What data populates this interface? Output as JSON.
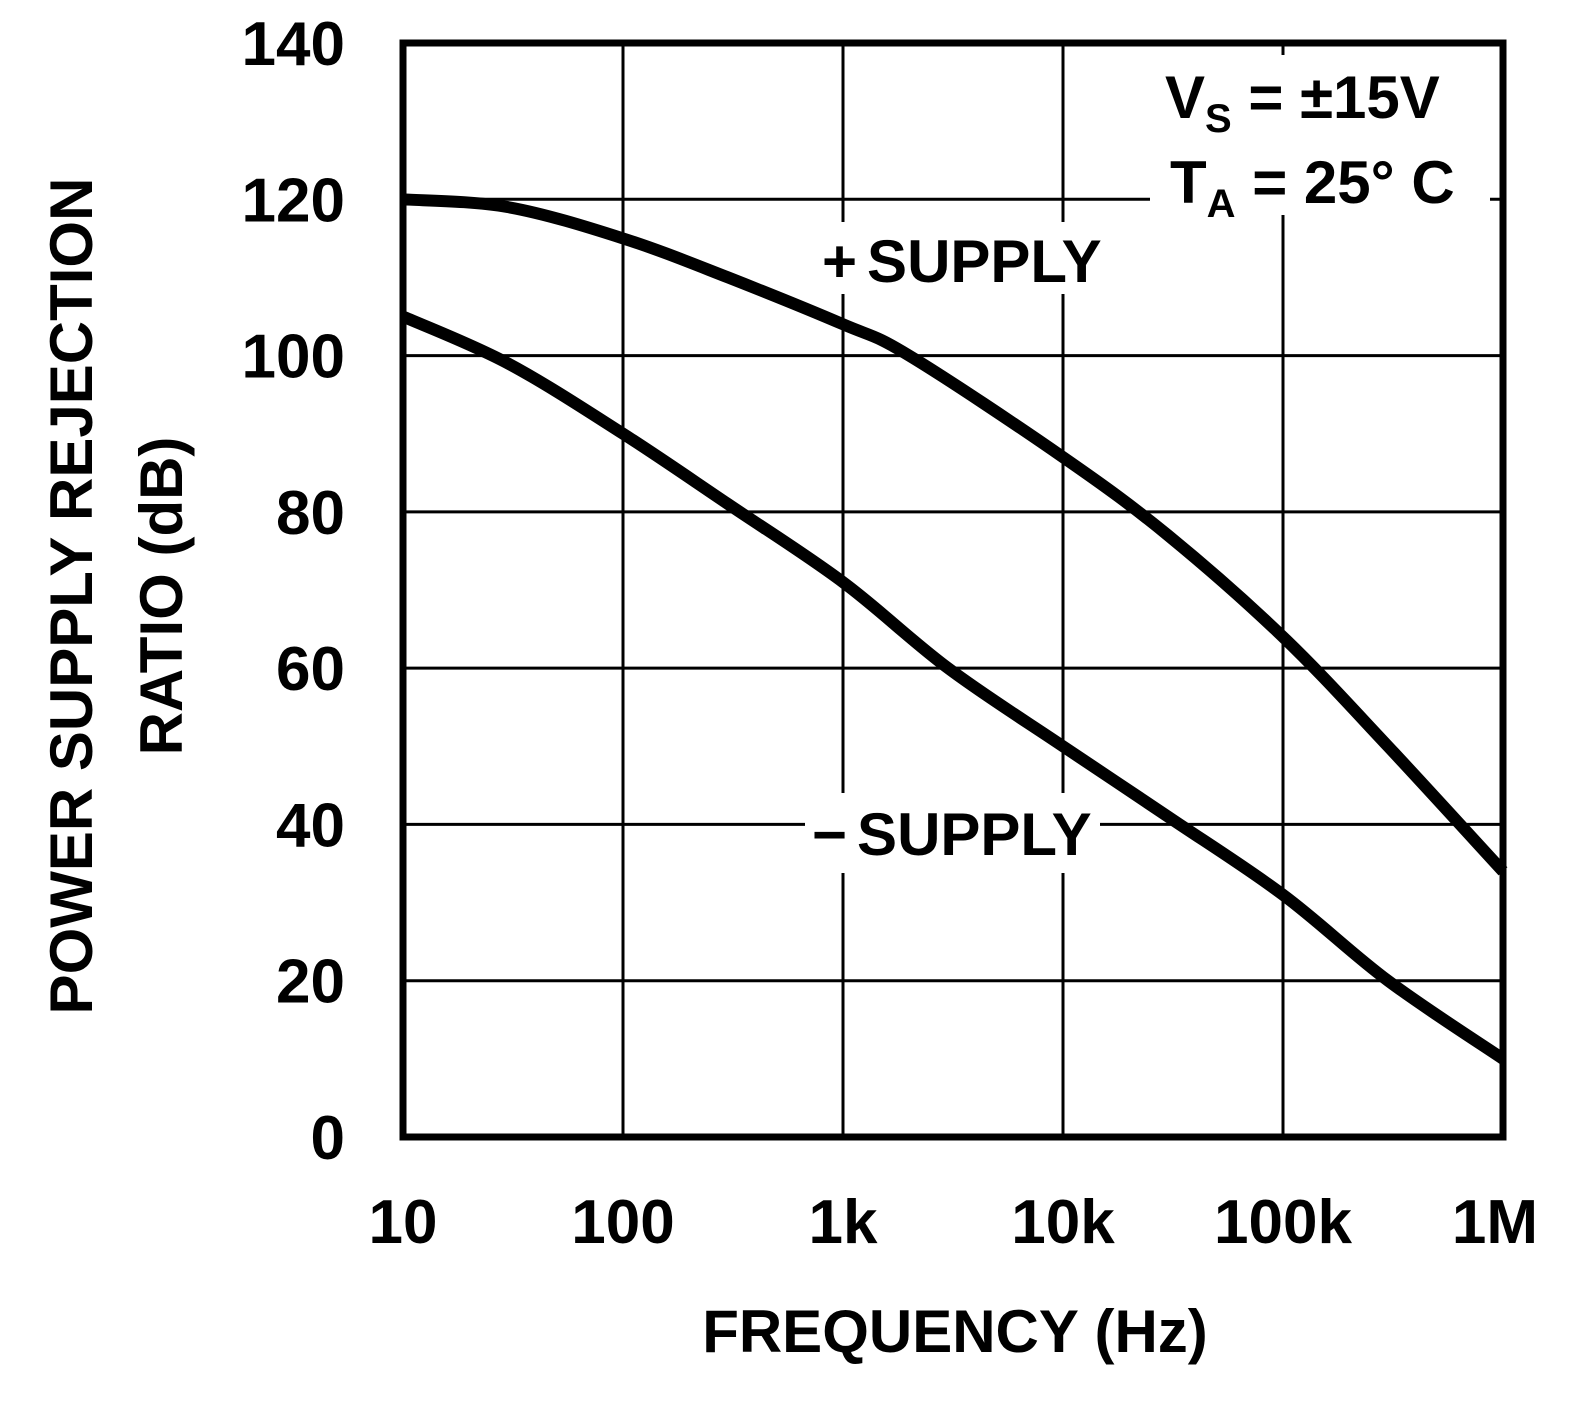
{
  "chart_data": {
    "type": "line",
    "title": "",
    "xlabel": "FREQUENCY (Hz)",
    "ylabel_lines": [
      "POWER SUPPLY REJECTION",
      "RATIO (dB)"
    ],
    "x_scale": "log",
    "xlim": [
      10,
      1000000
    ],
    "ylim": [
      0,
      140
    ],
    "grid": true,
    "x_ticks": [
      {
        "value": 10,
        "label": "10"
      },
      {
        "value": 100,
        "label": "100"
      },
      {
        "value": 1000,
        "label": "1k"
      },
      {
        "value": 10000,
        "label": "10k"
      },
      {
        "value": 100000,
        "label": "100k"
      },
      {
        "value": 1000000,
        "label": "1M"
      }
    ],
    "y_ticks": [
      {
        "value": 0,
        "label": "0"
      },
      {
        "value": 20,
        "label": "20"
      },
      {
        "value": 40,
        "label": "40"
      },
      {
        "value": 60,
        "label": "60"
      },
      {
        "value": 80,
        "label": "80"
      },
      {
        "value": 100,
        "label": "100"
      },
      {
        "value": 120,
        "label": "120"
      },
      {
        "value": 140,
        "label": "140"
      }
    ],
    "series": [
      {
        "name": "+ SUPPLY",
        "label_sign": "+",
        "label_text": "SUPPLY",
        "color": "#000000",
        "x": [
          10,
          30,
          100,
          300,
          1000,
          2000,
          10000,
          30000,
          100000,
          300000,
          1000000
        ],
        "y": [
          120,
          119,
          115,
          110,
          104,
          100,
          87,
          77,
          64,
          50,
          34
        ]
      },
      {
        "name": "− SUPPLY",
        "label_sign": "−",
        "label_text": "SUPPLY",
        "color": "#000000",
        "x": [
          10,
          30,
          100,
          300,
          1000,
          3000,
          10000,
          30000,
          100000,
          300000,
          1000000
        ],
        "y": [
          105,
          99,
          90,
          81,
          71,
          60,
          50,
          41,
          31,
          20,
          10
        ]
      }
    ],
    "annotations": {
      "vs": {
        "main": "V",
        "sub": "S",
        "rest": " = ±15V"
      },
      "ta": {
        "main": "T",
        "sub": "A",
        "rest": " = 25° C"
      }
    }
  }
}
